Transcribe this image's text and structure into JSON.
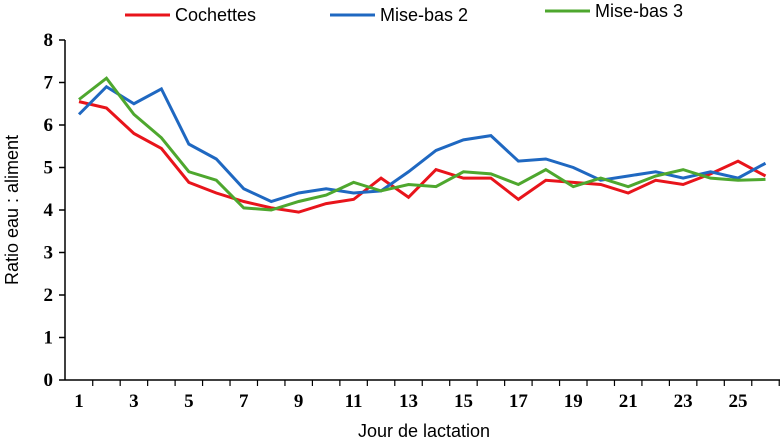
{
  "chart_data": {
    "type": "line",
    "title": "",
    "xlabel": "Jour de lactation",
    "ylabel": "Ratio eau : aliment",
    "ylim": [
      0,
      8
    ],
    "xlim": [
      1,
      26
    ],
    "x": [
      1,
      2,
      3,
      4,
      5,
      6,
      7,
      8,
      9,
      10,
      11,
      12,
      13,
      14,
      15,
      16,
      17,
      18,
      19,
      20,
      21,
      22,
      23,
      24,
      25,
      26
    ],
    "x_tick_labels": [
      "1",
      "3",
      "5",
      "7",
      "9",
      "11",
      "13",
      "15",
      "17",
      "19",
      "21",
      "23",
      "25"
    ],
    "y_tick_labels": [
      "0",
      "1",
      "2",
      "3",
      "4",
      "5",
      "6",
      "7",
      "8"
    ],
    "grid": false,
    "legend_position": "top",
    "series": [
      {
        "name": "Cochettes",
        "color": "#e8141b",
        "values": [
          6.55,
          6.4,
          5.8,
          5.45,
          4.65,
          4.4,
          4.2,
          4.05,
          3.95,
          4.15,
          4.25,
          4.75,
          4.3,
          4.95,
          4.75,
          4.75,
          4.25,
          4.7,
          4.65,
          4.6,
          4.4,
          4.7,
          4.6,
          4.85,
          5.15,
          4.8
        ]
      },
      {
        "name": "Mise-bas 2",
        "color": "#1f68c1",
        "values": [
          6.25,
          6.9,
          6.5,
          6.85,
          5.55,
          5.2,
          4.5,
          4.2,
          4.4,
          4.5,
          4.4,
          4.45,
          4.9,
          5.4,
          5.65,
          5.75,
          5.15,
          5.2,
          5.0,
          4.7,
          4.8,
          4.9,
          4.75,
          4.9,
          4.75,
          5.1
        ]
      },
      {
        "name": "Mise-bas 3",
        "color": "#4ea72e",
        "values": [
          6.6,
          7.1,
          6.25,
          5.7,
          4.9,
          4.7,
          4.05,
          4.0,
          4.2,
          4.35,
          4.65,
          4.45,
          4.6,
          4.55,
          4.9,
          4.85,
          4.6,
          4.95,
          4.55,
          4.75,
          4.55,
          4.8,
          4.95,
          4.75,
          4.7,
          4.72
        ]
      }
    ]
  }
}
